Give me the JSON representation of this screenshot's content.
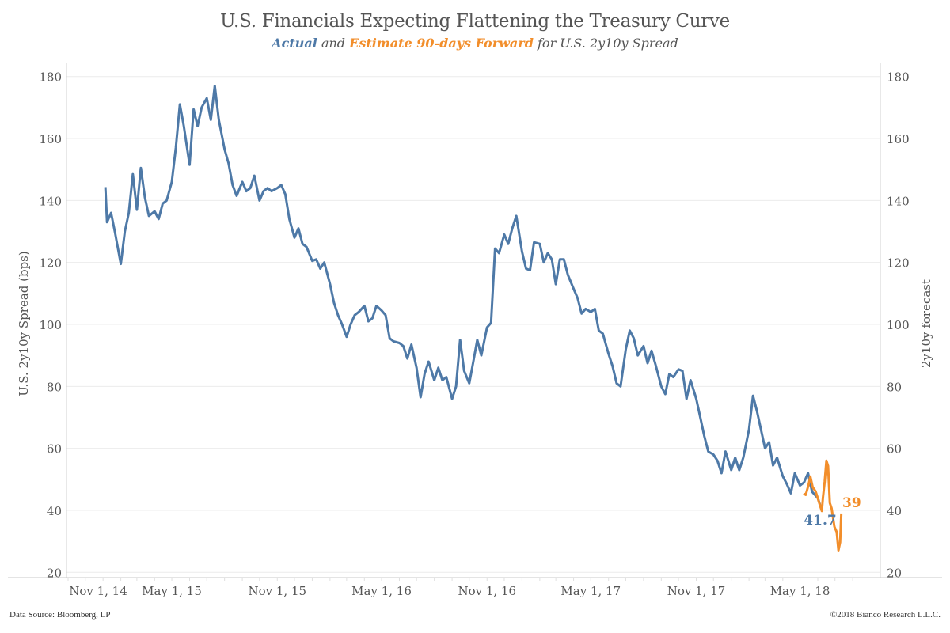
{
  "title": "U.S. Financials Expecting Flattening the Treasury Curve",
  "subtitle": {
    "actual": "Actual",
    "and": " and ",
    "estimate": "Estimate 90-days Forward",
    "rest": " for U.S. 2y10y Spread"
  },
  "footer": {
    "source": "Data Source: Bloomberg, LP",
    "copyright": "©2018 Bianco Research L.L.C."
  },
  "chart_data": {
    "type": "line",
    "title": "U.S. Financials Expecting Flattening the Treasury Curve",
    "ylabel": "U.S. 2y10y Spread (bps)",
    "ylabel_right": "2y10y forecast",
    "ylim": [
      20,
      180
    ],
    "yticks": [
      20,
      40,
      60,
      80,
      100,
      120,
      140,
      160,
      180
    ],
    "xticks": [
      {
        "date": "2014-11-01",
        "label": "Nov 1, 14"
      },
      {
        "date": "2015-05-01",
        "label": "May 1, 15"
      },
      {
        "date": "2015-11-01",
        "label": "Nov 1, 15"
      },
      {
        "date": "2016-05-01",
        "label": "May 1, 16"
      },
      {
        "date": "2016-11-01",
        "label": "Nov 1, 16"
      },
      {
        "date": "2017-05-01",
        "label": "May 1, 17"
      },
      {
        "date": "2017-11-01",
        "label": "Nov 1, 17"
      },
      {
        "date": "2018-05-01",
        "label": "May 1, 18"
      }
    ],
    "grid": true,
    "series": [
      {
        "name": "Actual",
        "color": "#4e79a7",
        "end_label": "41.7",
        "points": [
          [
            "2015-01-05",
            144.3
          ],
          [
            "2015-01-08",
            133
          ],
          [
            "2015-01-15",
            136
          ],
          [
            "2015-01-22",
            129.5
          ],
          [
            "2015-02-01",
            119.5
          ],
          [
            "2015-02-08",
            130
          ],
          [
            "2015-02-15",
            136
          ],
          [
            "2015-02-22",
            148.5
          ],
          [
            "2015-03-01",
            137
          ],
          [
            "2015-03-08",
            150.5
          ],
          [
            "2015-03-15",
            141
          ],
          [
            "2015-03-22",
            135
          ],
          [
            "2015-04-01",
            136.5
          ],
          [
            "2015-04-08",
            134
          ],
          [
            "2015-04-15",
            139
          ],
          [
            "2015-04-22",
            140
          ],
          [
            "2015-05-01",
            146
          ],
          [
            "2015-05-08",
            157
          ],
          [
            "2015-05-15",
            171
          ],
          [
            "2015-05-22",
            164
          ],
          [
            "2015-06-01",
            151.5
          ],
          [
            "2015-06-08",
            169.4
          ],
          [
            "2015-06-15",
            164
          ],
          [
            "2015-06-22",
            170
          ],
          [
            "2015-07-01",
            173
          ],
          [
            "2015-07-08",
            166
          ],
          [
            "2015-07-15",
            177
          ],
          [
            "2015-07-22",
            166
          ],
          [
            "2015-08-01",
            156.5
          ],
          [
            "2015-08-08",
            152
          ],
          [
            "2015-08-15",
            145
          ],
          [
            "2015-08-22",
            141.5
          ],
          [
            "2015-09-01",
            146
          ],
          [
            "2015-09-08",
            143
          ],
          [
            "2015-09-15",
            144
          ],
          [
            "2015-09-22",
            148
          ],
          [
            "2015-10-01",
            140
          ],
          [
            "2015-10-08",
            143
          ],
          [
            "2015-10-15",
            144
          ],
          [
            "2015-10-22",
            143
          ],
          [
            "2015-11-01",
            144
          ],
          [
            "2015-11-08",
            145
          ],
          [
            "2015-11-15",
            142
          ],
          [
            "2015-11-22",
            134
          ],
          [
            "2015-12-01",
            128
          ],
          [
            "2015-12-08",
            131
          ],
          [
            "2015-12-15",
            126
          ],
          [
            "2015-12-22",
            125
          ],
          [
            "2016-01-01",
            120.5
          ],
          [
            "2016-01-08",
            121
          ],
          [
            "2016-01-15",
            118
          ],
          [
            "2016-01-22",
            120
          ],
          [
            "2016-02-01",
            113
          ],
          [
            "2016-02-08",
            107
          ],
          [
            "2016-02-15",
            103
          ],
          [
            "2016-02-22",
            100
          ],
          [
            "2016-03-01",
            96
          ],
          [
            "2016-03-08",
            100
          ],
          [
            "2016-03-15",
            103
          ],
          [
            "2016-03-22",
            104
          ],
          [
            "2016-04-01",
            106
          ],
          [
            "2016-04-08",
            101
          ],
          [
            "2016-04-15",
            102
          ],
          [
            "2016-04-22",
            106
          ],
          [
            "2016-05-01",
            104.5
          ],
          [
            "2016-05-08",
            103
          ],
          [
            "2016-05-15",
            95.5
          ],
          [
            "2016-05-22",
            94.5
          ],
          [
            "2016-06-01",
            94
          ],
          [
            "2016-06-08",
            93
          ],
          [
            "2016-06-15",
            89
          ],
          [
            "2016-06-22",
            93.5
          ],
          [
            "2016-07-01",
            86
          ],
          [
            "2016-07-08",
            76.5
          ],
          [
            "2016-07-15",
            84
          ],
          [
            "2016-07-22",
            88
          ],
          [
            "2016-08-01",
            82
          ],
          [
            "2016-08-08",
            86
          ],
          [
            "2016-08-15",
            82
          ],
          [
            "2016-08-22",
            83
          ],
          [
            "2016-09-01",
            76
          ],
          [
            "2016-09-08",
            80
          ],
          [
            "2016-09-15",
            95
          ],
          [
            "2016-09-22",
            85
          ],
          [
            "2016-10-01",
            81
          ],
          [
            "2016-10-08",
            88
          ],
          [
            "2016-10-15",
            95
          ],
          [
            "2016-10-22",
            90
          ],
          [
            "2016-11-01",
            99
          ],
          [
            "2016-11-08",
            100.5
          ],
          [
            "2016-11-15",
            124.5
          ],
          [
            "2016-11-22",
            123
          ],
          [
            "2016-12-01",
            129
          ],
          [
            "2016-12-08",
            126
          ],
          [
            "2016-12-15",
            131
          ],
          [
            "2016-12-22",
            135
          ],
          [
            "2017-01-01",
            123.5
          ],
          [
            "2017-01-08",
            118
          ],
          [
            "2017-01-15",
            117.5
          ],
          [
            "2017-01-22",
            126.5
          ],
          [
            "2017-02-01",
            126
          ],
          [
            "2017-02-08",
            120
          ],
          [
            "2017-02-15",
            123
          ],
          [
            "2017-02-22",
            121
          ],
          [
            "2017-03-01",
            113
          ],
          [
            "2017-03-08",
            121
          ],
          [
            "2017-03-15",
            121
          ],
          [
            "2017-03-22",
            116
          ],
          [
            "2017-04-01",
            111.5
          ],
          [
            "2017-04-08",
            108.5
          ],
          [
            "2017-04-15",
            103.5
          ],
          [
            "2017-04-22",
            105
          ],
          [
            "2017-05-01",
            104
          ],
          [
            "2017-05-08",
            105
          ],
          [
            "2017-05-15",
            98
          ],
          [
            "2017-05-22",
            97
          ],
          [
            "2017-06-01",
            90.5
          ],
          [
            "2017-06-08",
            86.5
          ],
          [
            "2017-06-15",
            81
          ],
          [
            "2017-06-22",
            80
          ],
          [
            "2017-07-01",
            92
          ],
          [
            "2017-07-08",
            98
          ],
          [
            "2017-07-15",
            95.5
          ],
          [
            "2017-07-22",
            90
          ],
          [
            "2017-08-01",
            93
          ],
          [
            "2017-08-08",
            87.5
          ],
          [
            "2017-08-15",
            91.5
          ],
          [
            "2017-08-22",
            87
          ],
          [
            "2017-09-01",
            80
          ],
          [
            "2017-09-08",
            77.5
          ],
          [
            "2017-09-15",
            84
          ],
          [
            "2017-09-22",
            83
          ],
          [
            "2017-10-01",
            85.5
          ],
          [
            "2017-10-08",
            85
          ],
          [
            "2017-10-15",
            76
          ],
          [
            "2017-10-22",
            82
          ],
          [
            "2017-11-01",
            76
          ],
          [
            "2017-11-08",
            70
          ],
          [
            "2017-11-15",
            64
          ],
          [
            "2017-11-22",
            59
          ],
          [
            "2017-12-01",
            58
          ],
          [
            "2017-12-08",
            56
          ],
          [
            "2017-12-15",
            52
          ],
          [
            "2017-12-22",
            59
          ],
          [
            "2018-01-01",
            53
          ],
          [
            "2018-01-08",
            57
          ],
          [
            "2018-01-15",
            53
          ],
          [
            "2018-01-22",
            57
          ],
          [
            "2018-02-01",
            66
          ],
          [
            "2018-02-08",
            77
          ],
          [
            "2018-02-15",
            72
          ],
          [
            "2018-02-22",
            66
          ],
          [
            "2018-03-01",
            60
          ],
          [
            "2018-03-08",
            62
          ],
          [
            "2018-03-15",
            54.5
          ],
          [
            "2018-03-22",
            57
          ],
          [
            "2018-04-01",
            51
          ],
          [
            "2018-04-08",
            48.5
          ],
          [
            "2018-04-15",
            45.5
          ],
          [
            "2018-04-22",
            52
          ],
          [
            "2018-05-01",
            48
          ],
          [
            "2018-05-08",
            49
          ],
          [
            "2018-05-15",
            52
          ],
          [
            "2018-05-22",
            46
          ],
          [
            "2018-06-01",
            44
          ],
          [
            "2018-06-05",
            41.7
          ]
        ]
      },
      {
        "name": "Estimate 90-days Forward",
        "color": "#f28e2b",
        "end_label": "39",
        "points": [
          [
            "2018-05-07",
            45.4
          ],
          [
            "2018-05-11",
            45
          ],
          [
            "2018-05-16",
            48.3
          ],
          [
            "2018-05-19",
            50.9
          ],
          [
            "2018-05-23",
            47.5
          ],
          [
            "2018-05-28",
            46.2
          ],
          [
            "2018-05-31",
            44.5
          ],
          [
            "2018-06-05",
            41.5
          ],
          [
            "2018-06-08",
            39.8
          ],
          [
            "2018-06-10",
            44.1
          ],
          [
            "2018-06-13",
            49.2
          ],
          [
            "2018-06-16",
            56
          ],
          [
            "2018-06-19",
            54.3
          ],
          [
            "2018-06-22",
            42.4
          ],
          [
            "2018-06-25",
            40.7
          ],
          [
            "2018-06-30",
            34.7
          ],
          [
            "2018-07-04",
            33
          ],
          [
            "2018-07-07",
            27.1
          ],
          [
            "2018-07-10",
            29.7
          ],
          [
            "2018-07-12",
            39
          ]
        ]
      }
    ]
  }
}
